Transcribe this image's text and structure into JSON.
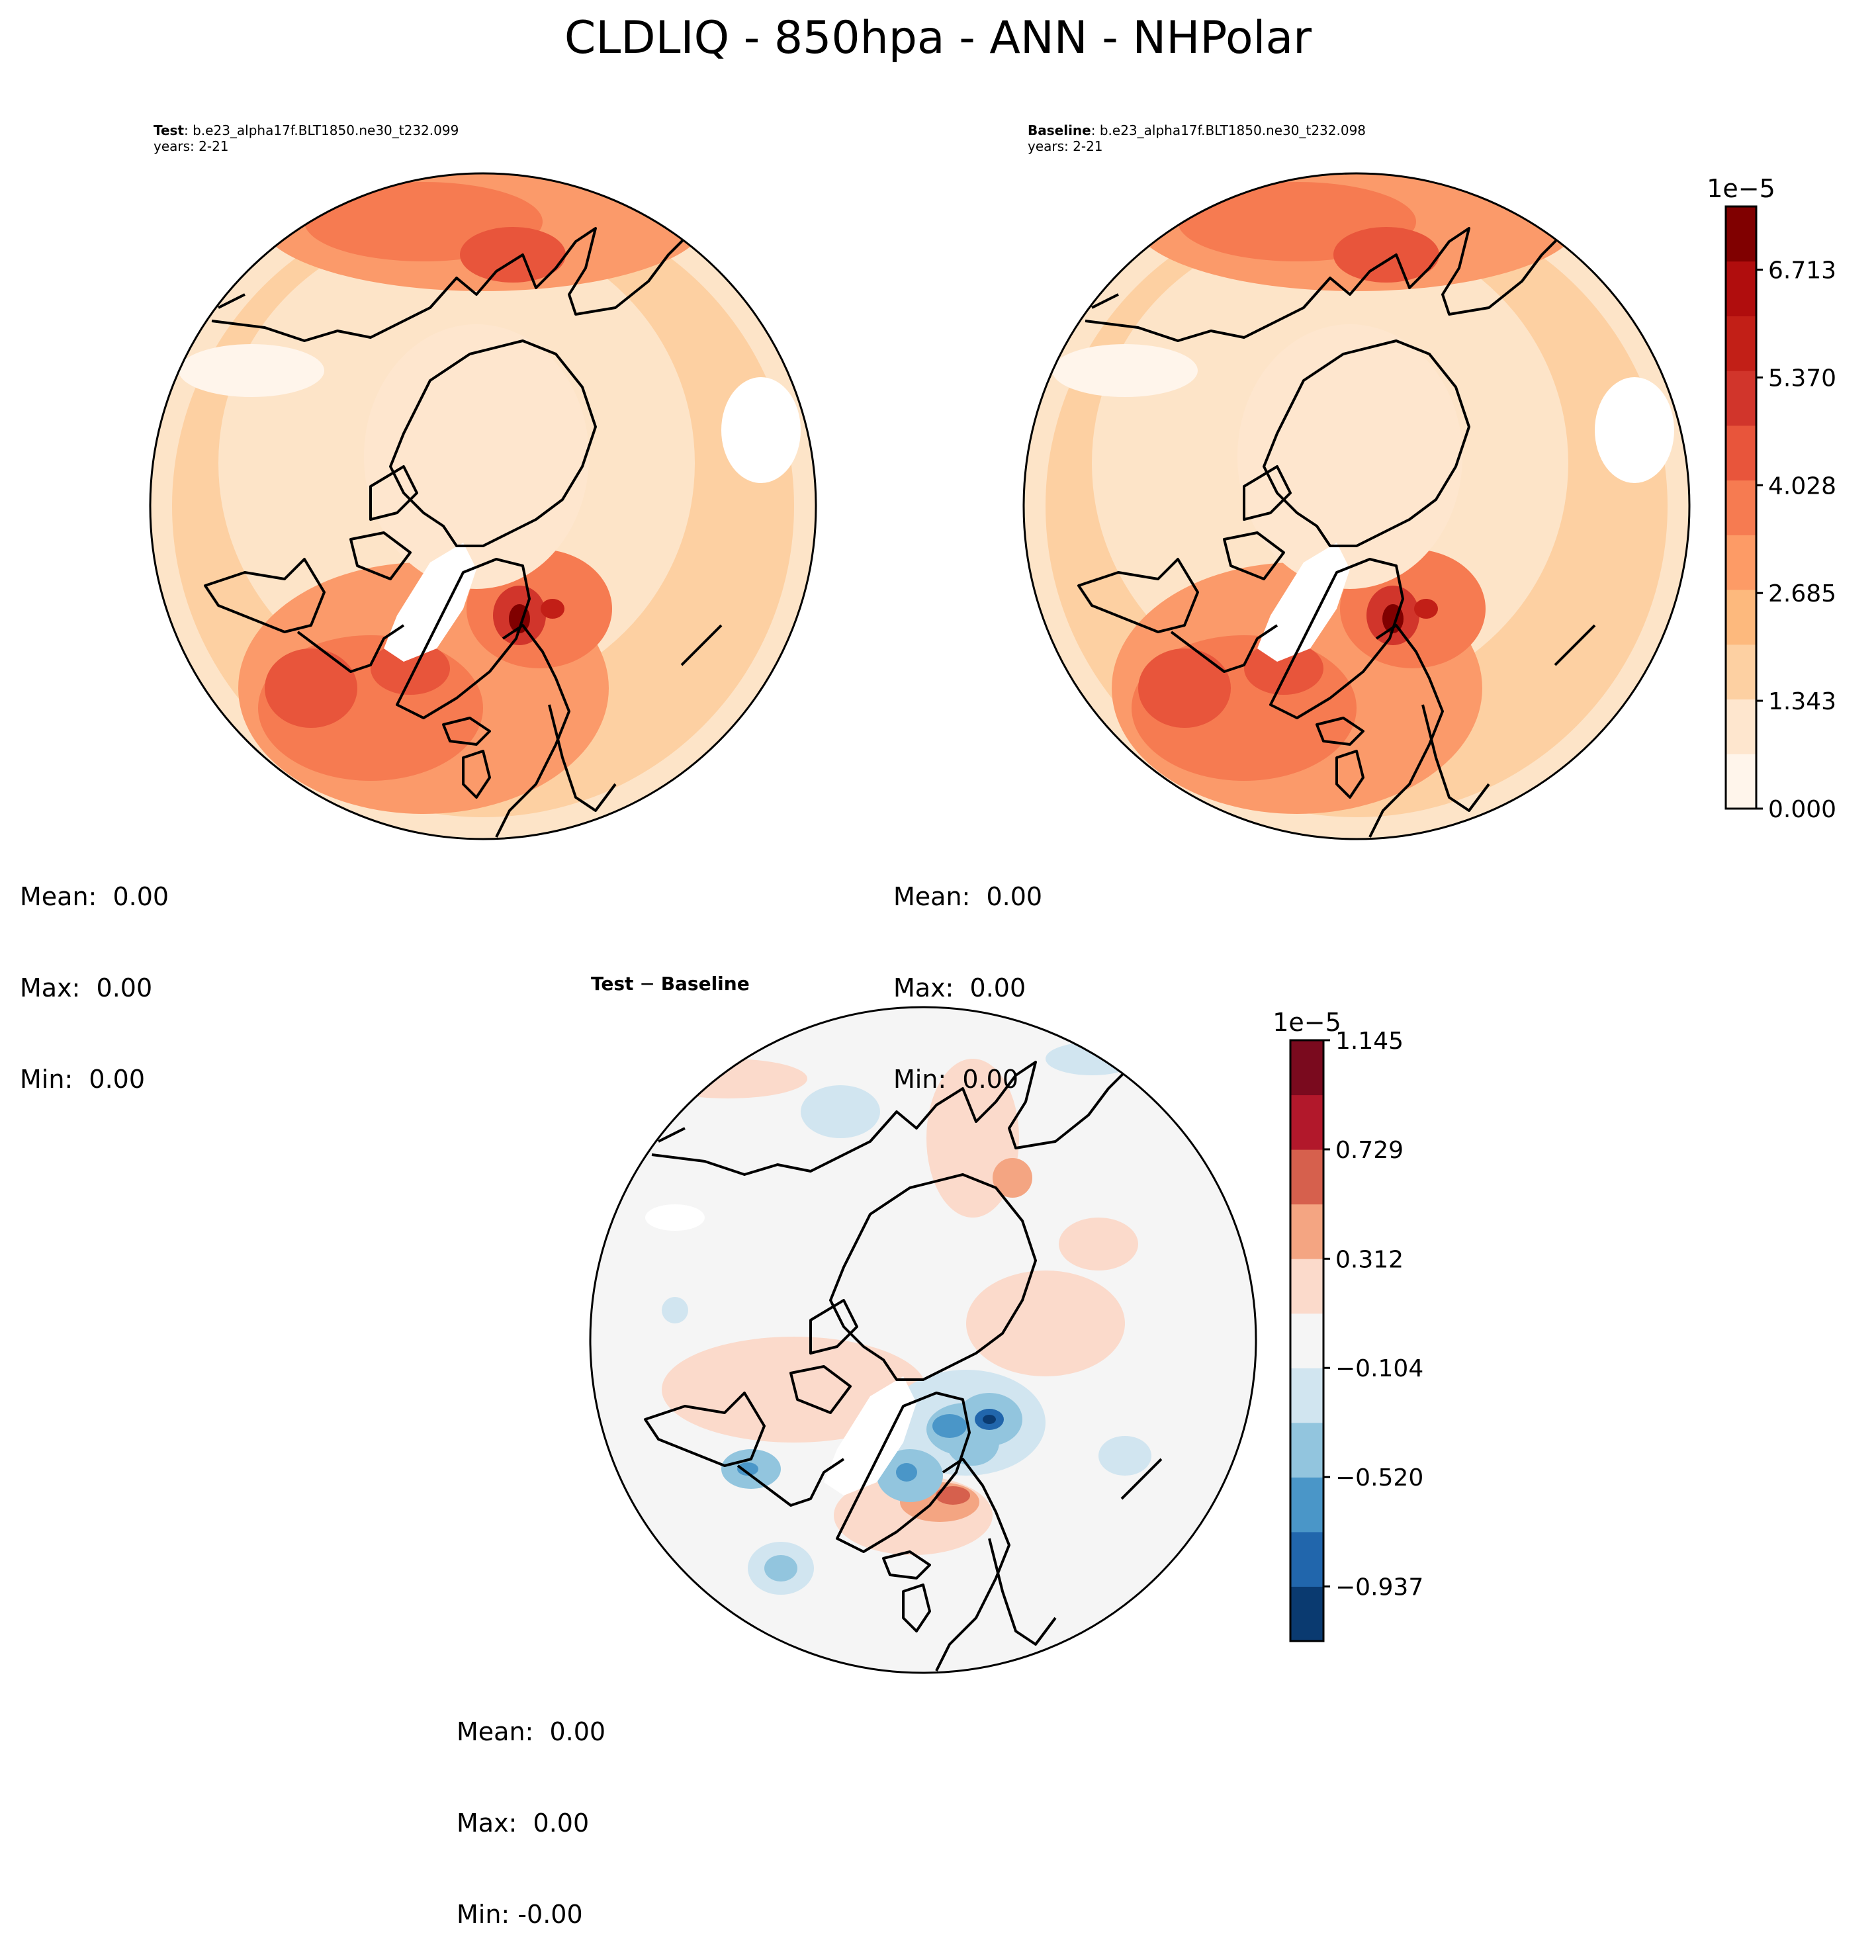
{
  "title": "CLDLIQ - 850hpa - ANN - NHPolar",
  "panels": {
    "test": {
      "label": "Test",
      "case": ": b.e23_alpha17f.BLT1850.ne30_t232.099",
      "years": "years: 2-21",
      "stats": {
        "mean": "Mean:  0.00",
        "max": "Max:  0.00",
        "min": "Min:  0.00"
      }
    },
    "baseline": {
      "label": "Baseline",
      "case": ": b.e23_alpha17f.BLT1850.ne30_t232.098",
      "years": "years: 2-21",
      "stats": {
        "mean": "Mean:  0.00",
        "max": "Max:  0.00",
        "min": "Min:  0.00"
      }
    },
    "diff": {
      "label_a": "Test",
      "label_op": " − ",
      "label_b": "Baseline",
      "stats": {
        "mean": "Mean:  0.00",
        "max": "Max:  0.00",
        "min": "Min: -0.00"
      }
    }
  },
  "chart_data": [
    {
      "type": "heatmap",
      "name": "test",
      "projection": "north-polar-stereographic",
      "colormap": "Reds",
      "colorbar": {
        "exponent_label": "1e−5",
        "ticks": [
          "0.000",
          "1.343",
          "2.685",
          "4.028",
          "5.370",
          "6.713"
        ],
        "tick_values": [
          0.0,
          1.343,
          2.685,
          4.028,
          5.37,
          6.713
        ],
        "range": [
          0.0,
          7.5
        ],
        "levels": 11,
        "colors": [
          "#fff5eb",
          "#fee6ce",
          "#fdd0a2",
          "#fdb97d",
          "#fd9b66",
          "#f67b51",
          "#e8553b",
          "#d1352b",
          "#c21f17",
          "#b00d0d",
          "#800000"
        ]
      }
    },
    {
      "type": "heatmap",
      "name": "baseline",
      "projection": "north-polar-stereographic",
      "colormap": "Reds",
      "shares_colorbar_with": "test"
    },
    {
      "type": "heatmap",
      "name": "test-minus-baseline",
      "projection": "north-polar-stereographic",
      "colormap": "RdBu_r",
      "colorbar": {
        "exponent_label": "1e−5",
        "ticks": [
          "1.145",
          "0.729",
          "0.312",
          "−0.104",
          "−0.520",
          "−0.937"
        ],
        "tick_values": [
          1.145,
          0.729,
          0.312,
          -0.104,
          -0.52,
          -0.937
        ],
        "range": [
          -1.145,
          1.145
        ],
        "levels": 11,
        "colors": [
          "#0a3a70",
          "#2166ac",
          "#4a96c8",
          "#92c5de",
          "#d1e5f0",
          "#f5f5f5",
          "#fbdacb",
          "#f4a582",
          "#d6604d",
          "#b2182b",
          "#7a0a1e"
        ]
      }
    }
  ]
}
